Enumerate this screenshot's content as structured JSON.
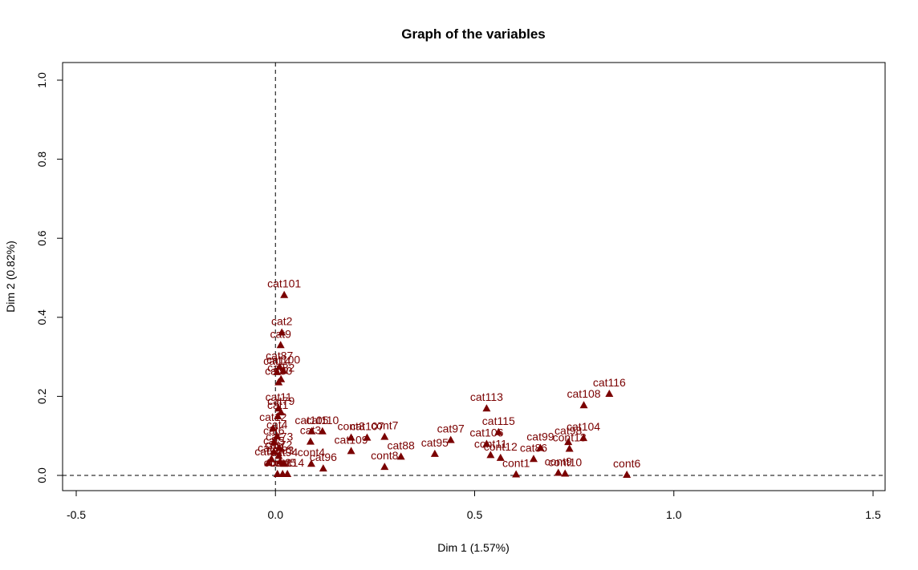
{
  "chart_data": {
    "type": "scatter",
    "title": "Graph of the variables",
    "xlabel": "Dim 1 (1.57%)",
    "ylabel": "Dim 2 (0.82%)",
    "xlim": [
      -0.5,
      1.5
    ],
    "ylim": [
      0.0,
      1.0
    ],
    "xticks": [
      "-0.5",
      "0.0",
      "0.5",
      "1.0",
      "1.5"
    ],
    "yticks": [
      "0.0",
      "0.2",
      "0.4",
      "0.6",
      "0.8",
      "1.0"
    ],
    "grid": false,
    "reference_lines": {
      "x": 0,
      "y": 0,
      "style": "dashed"
    },
    "marker": "triangle",
    "color": "#7a0000",
    "points": [
      {
        "label": "cat101",
        "x": 0.022,
        "y": 0.457
      },
      {
        "label": "cat2",
        "x": 0.016,
        "y": 0.362
      },
      {
        "label": "cat9",
        "x": 0.013,
        "y": 0.33
      },
      {
        "label": "cat87",
        "x": 0.01,
        "y": 0.275
      },
      {
        "label": "cat100",
        "x": 0.02,
        "y": 0.265
      },
      {
        "label": "cat14",
        "x": 0.004,
        "y": 0.262
      },
      {
        "label": "cat82",
        "x": 0.014,
        "y": 0.244
      },
      {
        "label": "cat80",
        "x": 0.008,
        "y": 0.236
      },
      {
        "label": "cat11",
        "x": 0.008,
        "y": 0.17
      },
      {
        "label": "cat79",
        "x": 0.014,
        "y": 0.16
      },
      {
        "label": "cat1",
        "x": 0.006,
        "y": 0.15
      },
      {
        "label": "cat105",
        "x": 0.091,
        "y": 0.112
      },
      {
        "label": "cat110",
        "x": 0.118,
        "y": 0.112
      },
      {
        "label": "cat3",
        "x": 0.088,
        "y": 0.086
      },
      {
        "label": "cont3",
        "x": 0.19,
        "y": 0.096
      },
      {
        "label": "cat107",
        "x": 0.23,
        "y": 0.096
      },
      {
        "label": "cont7",
        "x": 0.274,
        "y": 0.098
      },
      {
        "label": "cat109",
        "x": 0.19,
        "y": 0.062
      },
      {
        "label": "cat88",
        "x": 0.315,
        "y": 0.048
      },
      {
        "label": "cont8",
        "x": 0.274,
        "y": 0.022
      },
      {
        "label": "cont4",
        "x": 0.09,
        "y": 0.03
      },
      {
        "label": "cat96",
        "x": 0.12,
        "y": 0.018
      },
      {
        "label": "cat95",
        "x": 0.4,
        "y": 0.055
      },
      {
        "label": "cat97",
        "x": 0.44,
        "y": 0.09
      },
      {
        "label": "cat113",
        "x": 0.53,
        "y": 0.17
      },
      {
        "label": "cat115",
        "x": 0.56,
        "y": 0.11
      },
      {
        "label": "cat106",
        "x": 0.53,
        "y": 0.08
      },
      {
        "label": "cont11",
        "x": 0.54,
        "y": 0.052
      },
      {
        "label": "cont12",
        "x": 0.565,
        "y": 0.045
      },
      {
        "label": "cont1",
        "x": 0.604,
        "y": 0.003
      },
      {
        "label": "cat99",
        "x": 0.665,
        "y": 0.07
      },
      {
        "label": "cat86",
        "x": 0.648,
        "y": 0.042
      },
      {
        "label": "cont9",
        "x": 0.71,
        "y": 0.007
      },
      {
        "label": "cont10",
        "x": 0.727,
        "y": 0.005
      },
      {
        "label": "cat98",
        "x": 0.735,
        "y": 0.085
      },
      {
        "label": "cont13",
        "x": 0.738,
        "y": 0.068
      },
      {
        "label": "cat104",
        "x": 0.773,
        "y": 0.095
      },
      {
        "label": "cat108",
        "x": 0.774,
        "y": 0.178
      },
      {
        "label": "cat116",
        "x": 0.838,
        "y": 0.207
      },
      {
        "label": "cont6",
        "x": 0.882,
        "y": 0.002
      },
      {
        "label": "cat12",
        "x": -0.006,
        "y": 0.12
      },
      {
        "label": "cat4",
        "x": 0.004,
        "y": 0.1
      },
      {
        "label": "cat6",
        "x": -0.004,
        "y": 0.085
      },
      {
        "label": "cat73",
        "x": 0.01,
        "y": 0.07
      },
      {
        "label": "cat5",
        "x": -0.004,
        "y": 0.06
      },
      {
        "label": "cat72",
        "x": 0.008,
        "y": 0.05
      },
      {
        "label": "cat81",
        "x": -0.01,
        "y": 0.042
      },
      {
        "label": "cat83",
        "x": 0.012,
        "y": 0.036
      },
      {
        "label": "cat92",
        "x": -0.018,
        "y": 0.032
      },
      {
        "label": "cat94",
        "x": 0.022,
        "y": 0.03
      },
      {
        "label": "cont2",
        "x": 0.005,
        "y": 0.004
      },
      {
        "label": "cont5",
        "x": 0.018,
        "y": 0.004
      },
      {
        "label": "cont14",
        "x": 0.03,
        "y": 0.004
      }
    ]
  }
}
